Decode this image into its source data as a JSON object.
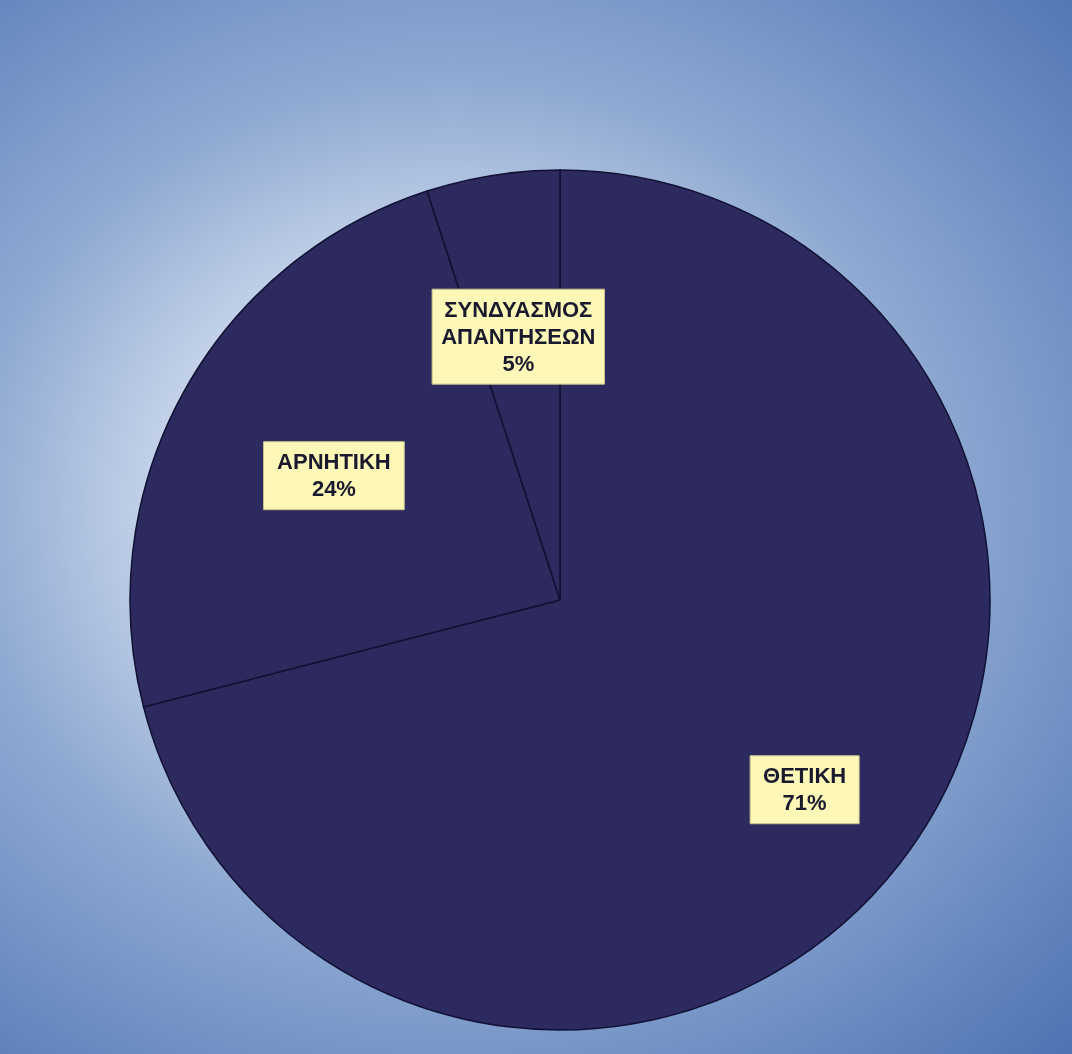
{
  "chart_data": {
    "type": "pie",
    "categories": [
      "ΘΕΤΙΚΗ",
      "ΑΡΝΗΤΙΚΗ",
      "ΣΥΝΔΥΑΣΜΟΣ ΑΠΑΝΤΗΣΕΩΝ"
    ],
    "values": [
      71,
      24,
      5
    ],
    "value_labels": [
      "71%",
      "24%",
      "5%"
    ],
    "colors": [
      "#2c2a5e",
      "#2c2a5e",
      "#2c2a5e"
    ]
  }
}
